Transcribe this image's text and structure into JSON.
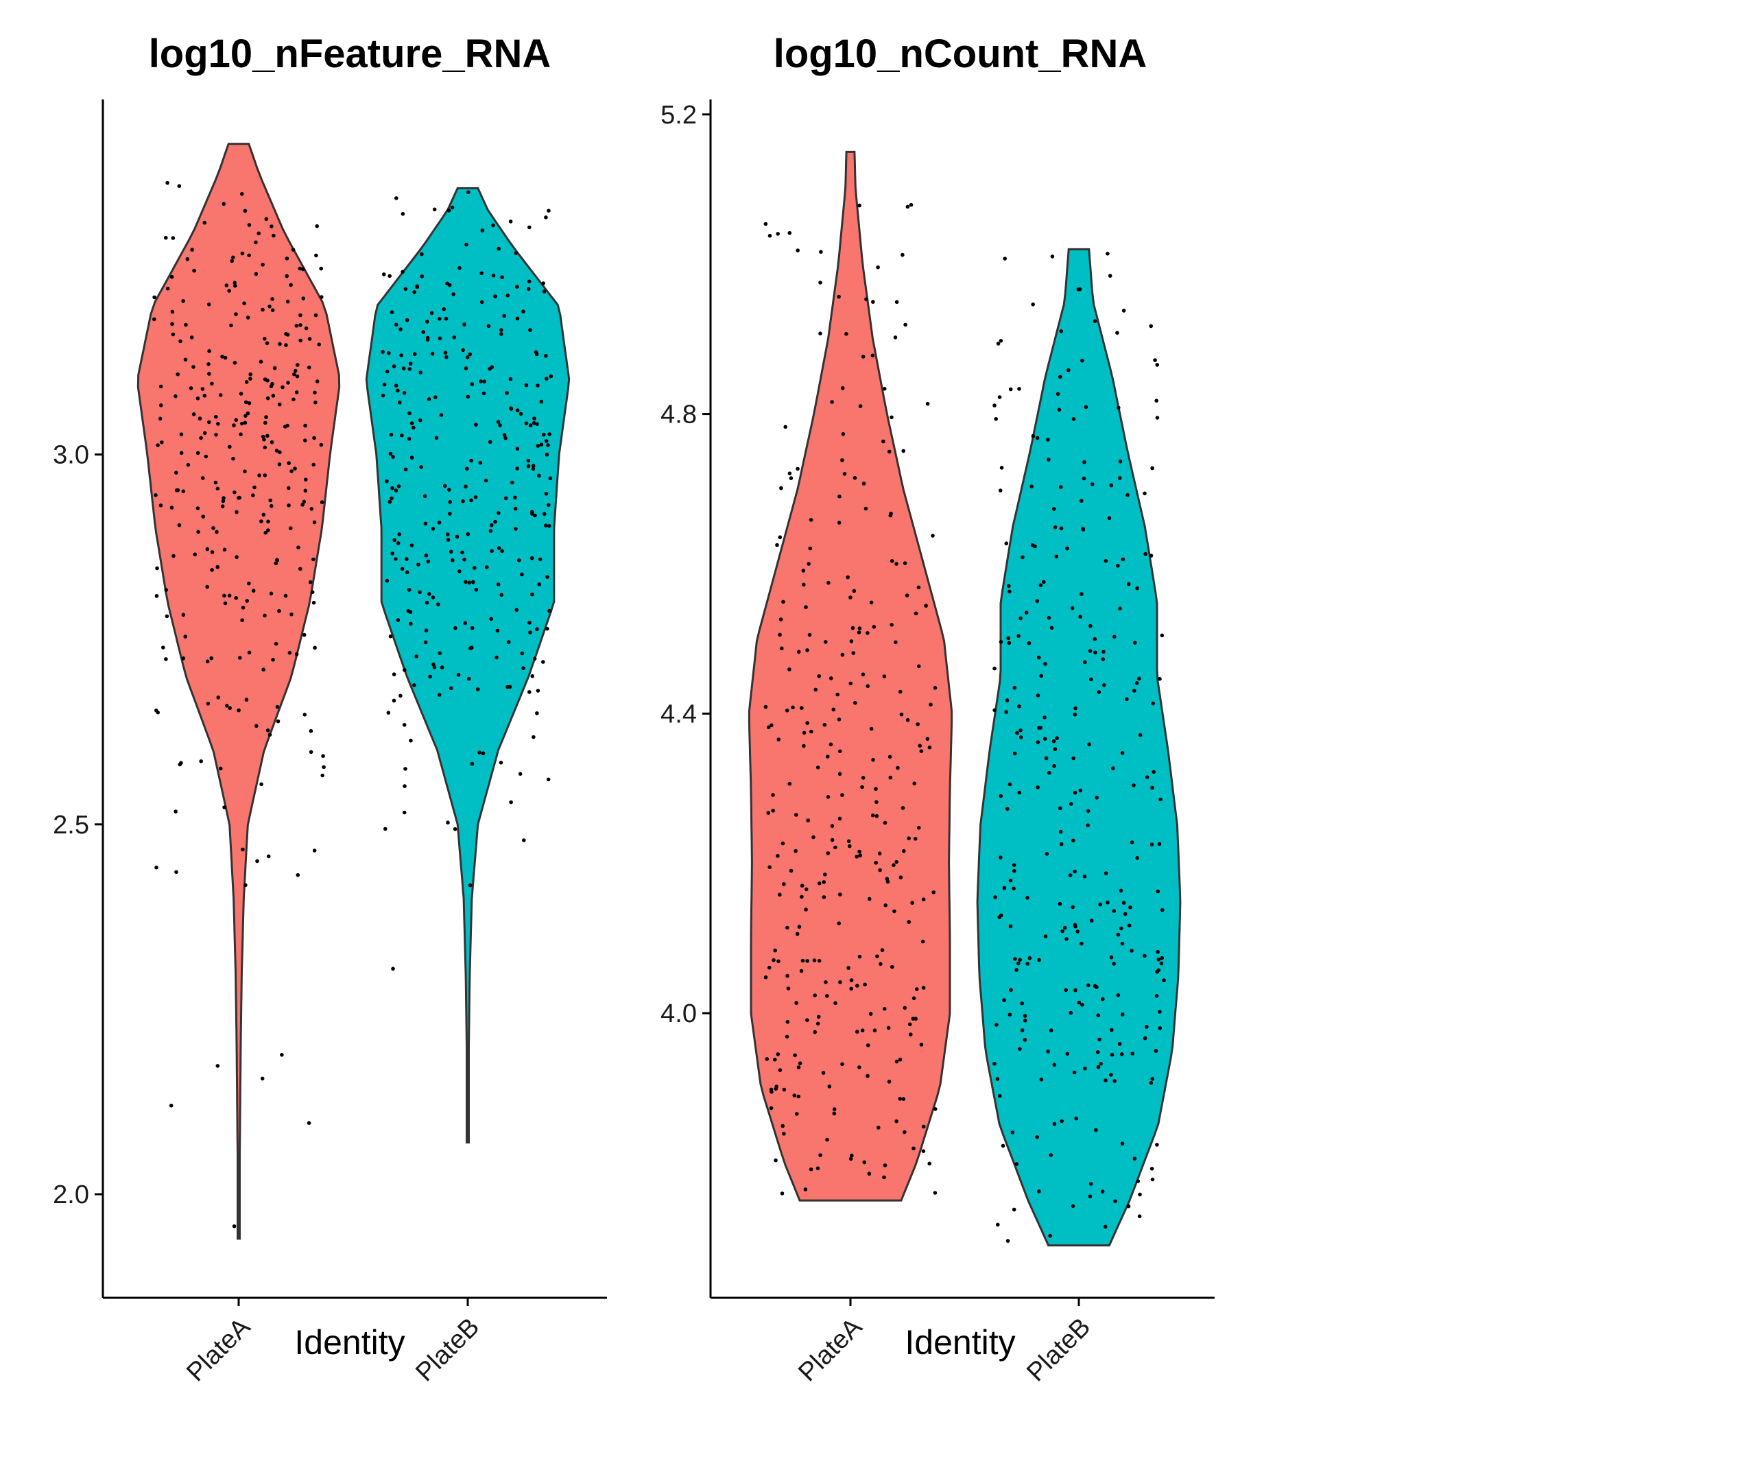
{
  "chart_data": [
    {
      "type": "violin",
      "title": "log10_nFeature_RNA",
      "xlabel": "Identity",
      "ylabel": "",
      "categories": [
        "PlateA",
        "PlateB"
      ],
      "yticks": [
        2.0,
        2.5,
        3.0
      ],
      "ylim": [
        1.86,
        3.48
      ],
      "grid": false,
      "legend": "none",
      "series": [
        {
          "category": "PlateA",
          "color": "#F8766D",
          "min": 1.94,
          "max": 3.42,
          "density": [
            [
              1.94,
              0.01
            ],
            [
              2.05,
              0.01
            ],
            [
              2.2,
              0.02
            ],
            [
              2.3,
              0.03
            ],
            [
              2.4,
              0.05
            ],
            [
              2.5,
              0.09
            ],
            [
              2.6,
              0.25
            ],
            [
              2.7,
              0.52
            ],
            [
              2.8,
              0.7
            ],
            [
              2.9,
              0.82
            ],
            [
              3.0,
              0.9
            ],
            [
              3.1,
              1.0
            ],
            [
              3.2,
              0.85
            ],
            [
              3.3,
              0.45
            ],
            [
              3.38,
              0.2
            ],
            [
              3.42,
              0.1
            ]
          ]
        },
        {
          "category": "PlateB",
          "color": "#00BFC4",
          "min": 2.07,
          "max": 3.36,
          "density": [
            [
              2.07,
              0.01
            ],
            [
              2.2,
              0.01
            ],
            [
              2.3,
              0.02
            ],
            [
              2.4,
              0.04
            ],
            [
              2.5,
              0.1
            ],
            [
              2.6,
              0.3
            ],
            [
              2.7,
              0.6
            ],
            [
              2.8,
              0.85
            ],
            [
              2.9,
              0.85
            ],
            [
              3.0,
              0.9
            ],
            [
              3.1,
              1.0
            ],
            [
              3.2,
              0.9
            ],
            [
              3.28,
              0.45
            ],
            [
              3.33,
              0.2
            ],
            [
              3.36,
              0.1
            ]
          ]
        }
      ]
    },
    {
      "type": "violin",
      "title": "log10_nCount_RNA",
      "xlabel": "Identity",
      "ylabel": "",
      "categories": [
        "PlateA",
        "PlateB"
      ],
      "yticks": [
        4.0,
        4.4,
        4.8,
        5.2
      ],
      "ylim": [
        3.62,
        5.22
      ],
      "grid": false,
      "legend": "none",
      "series": [
        {
          "category": "PlateA",
          "color": "#F8766D",
          "min": 3.75,
          "max": 5.15,
          "density": [
            [
              3.75,
              0.5
            ],
            [
              3.8,
              0.65
            ],
            [
              3.9,
              0.88
            ],
            [
              4.0,
              0.98
            ],
            [
              4.1,
              0.98
            ],
            [
              4.2,
              0.97
            ],
            [
              4.3,
              0.98
            ],
            [
              4.4,
              1.0
            ],
            [
              4.5,
              0.92
            ],
            [
              4.6,
              0.72
            ],
            [
              4.7,
              0.52
            ],
            [
              4.8,
              0.36
            ],
            [
              4.9,
              0.22
            ],
            [
              5.0,
              0.12
            ],
            [
              5.1,
              0.05
            ],
            [
              5.15,
              0.04
            ]
          ]
        },
        {
          "category": "PlateB",
          "color": "#00BFC4",
          "min": 3.69,
          "max": 5.02,
          "density": [
            [
              3.69,
              0.3
            ],
            [
              3.75,
              0.5
            ],
            [
              3.85,
              0.78
            ],
            [
              3.95,
              0.92
            ],
            [
              4.05,
              0.98
            ],
            [
              4.15,
              1.0
            ],
            [
              4.25,
              0.97
            ],
            [
              4.35,
              0.88
            ],
            [
              4.45,
              0.77
            ],
            [
              4.55,
              0.77
            ],
            [
              4.65,
              0.65
            ],
            [
              4.75,
              0.48
            ],
            [
              4.85,
              0.33
            ],
            [
              4.95,
              0.14
            ],
            [
              5.02,
              0.1
            ]
          ]
        }
      ]
    }
  ]
}
